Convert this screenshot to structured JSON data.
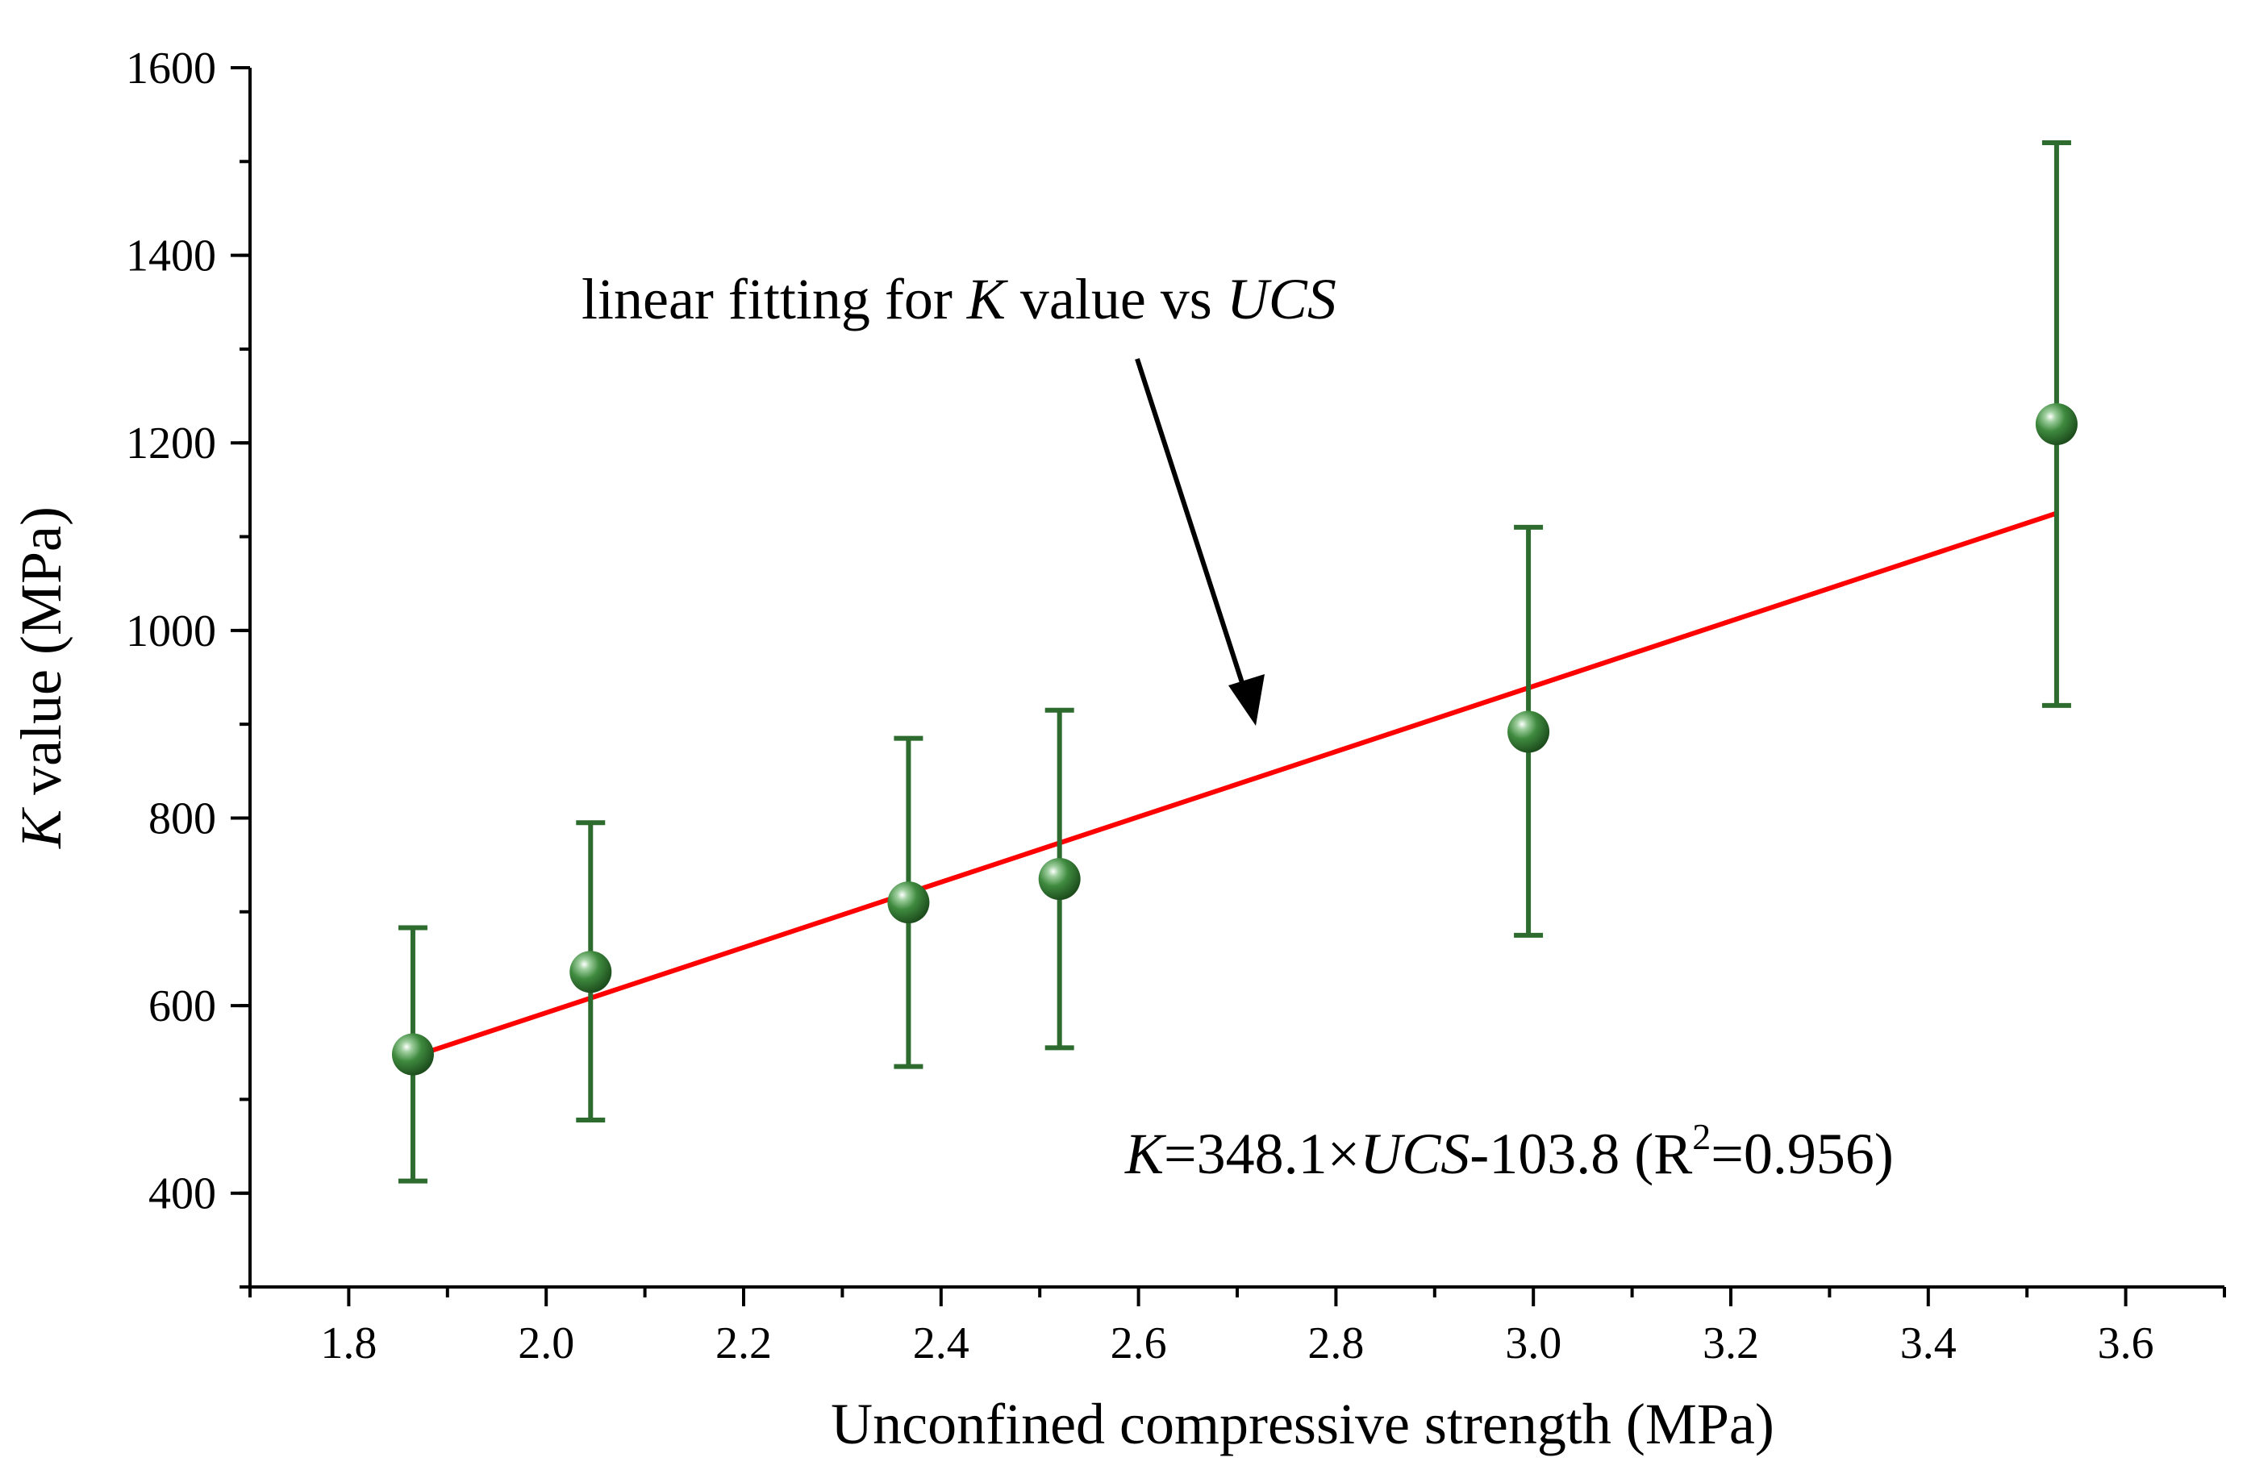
{
  "chart_data": {
    "type": "scatter",
    "title": "",
    "xlabel": "Unconfined compressive strength (MPa)",
    "ylabel": {
      "italic": "K",
      "rest": " value (MPa)"
    },
    "xlim": [
      1.7,
      3.7
    ],
    "ylim": [
      300,
      1600
    ],
    "xticks": [
      1.8,
      2.0,
      2.2,
      2.4,
      2.6,
      2.8,
      3.0,
      3.2,
      3.4,
      3.6
    ],
    "xtick_labels": [
      "1.8",
      "2.0",
      "2.2",
      "2.4",
      "2.6",
      "2.8",
      "3.0",
      "3.2",
      "3.4",
      "3.6"
    ],
    "yticks": [
      400,
      600,
      800,
      1000,
      1200,
      1400,
      1600
    ],
    "ytick_labels": [
      "400",
      "600",
      "800",
      "1000",
      "1200",
      "1400",
      "1600"
    ],
    "series": [
      {
        "name": "K value",
        "x": [
          1.865,
          2.045,
          2.367,
          2.52,
          2.995,
          3.53
        ],
        "y": [
          548,
          636,
          710,
          735,
          892,
          1220
        ],
        "err_low": [
          413,
          478,
          535,
          555,
          675,
          920
        ],
        "err_high": [
          683,
          795,
          885,
          915,
          1110,
          1520
        ],
        "color": "#2E6B2E"
      }
    ],
    "fit": {
      "slope": 348.1,
      "intercept": -103.8,
      "x_range": [
        1.865,
        3.53
      ],
      "color": "#FF0000"
    },
    "annotations": {
      "arrow_label": {
        "t1": "linear fitting for ",
        "k": "K",
        "t2": " value vs ",
        "ucs": "UCS"
      },
      "equation": {
        "k": "K",
        "t1": "=348.1×",
        "ucs": "UCS",
        "t2": "-103.8 (R",
        "sup": "2",
        "t3": "=0.956)"
      }
    }
  }
}
